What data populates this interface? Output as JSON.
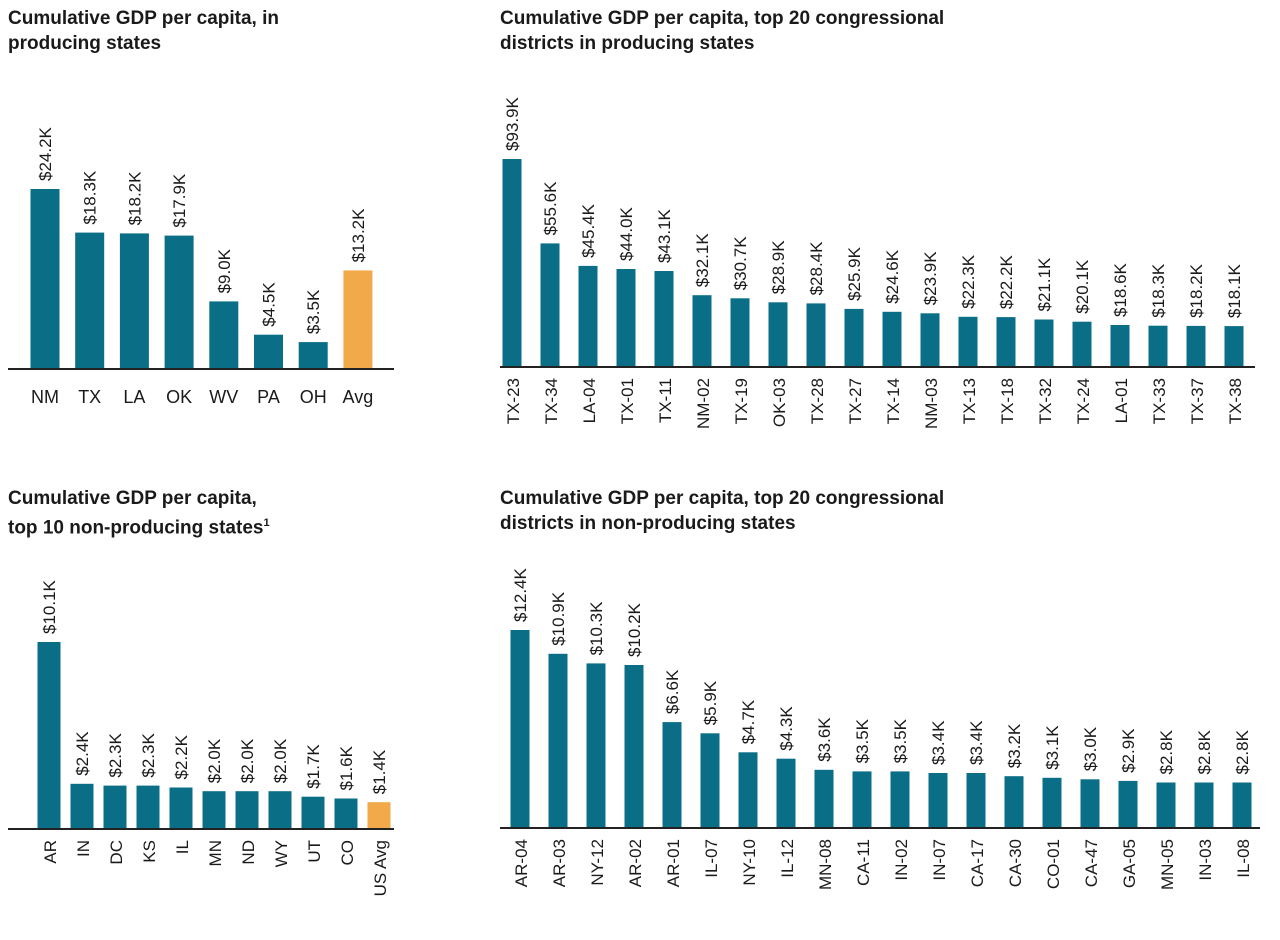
{
  "colors": {
    "bar": "#0a6e87",
    "highlight": "#f2a94a",
    "axis": "#222222",
    "text": "#1a1a1a"
  },
  "chart_data": [
    {
      "type": "bar",
      "title": [
        "Cumulative GDP per capita, in",
        "producing states"
      ],
      "footnote_mark": "",
      "categories": [
        "NM",
        "TX",
        "LA",
        "OK",
        "WV",
        "PA",
        "OH",
        "Avg"
      ],
      "values": [
        24.2,
        18.3,
        18.2,
        17.9,
        9.0,
        4.5,
        3.5,
        13.2
      ],
      "labels": [
        "$24.2K",
        "$18.3K",
        "$18.2K",
        "$17.9K",
        "$9.0K",
        "$4.5K",
        "$3.5K",
        "$13.2K"
      ],
      "highlight_index": 7,
      "unit": "thousand USD",
      "ylim": [
        0,
        24.2
      ],
      "grid": false,
      "rotated_category_labels": false
    },
    {
      "type": "bar",
      "title": [
        "Cumulative GDP per capita, top 20 congressional",
        "districts in producing states"
      ],
      "footnote_mark": "",
      "categories": [
        "TX-23",
        "TX-34",
        "LA-04",
        "TX-01",
        "TX-11",
        "NM-02",
        "TX-19",
        "OK-03",
        "TX-28",
        "TX-27",
        "TX-14",
        "NM-03",
        "TX-13",
        "TX-18",
        "TX-32",
        "TX-24",
        "LA-01",
        "TX-33",
        "TX-37",
        "TX-38"
      ],
      "values": [
        93.9,
        55.6,
        45.4,
        44.0,
        43.1,
        32.1,
        30.7,
        28.9,
        28.4,
        25.9,
        24.6,
        23.9,
        22.3,
        22.2,
        21.1,
        20.1,
        18.6,
        18.3,
        18.2,
        18.1
      ],
      "labels": [
        "$93.9K",
        "$55.6K",
        "$45.4K",
        "$44.0K",
        "$43.1K",
        "$32.1K",
        "$30.7K",
        "$28.9K",
        "$28.4K",
        "$25.9K",
        "$24.6K",
        "$23.9K",
        "$22.3K",
        "$22.2K",
        "$21.1K",
        "$20.1K",
        "$18.6K",
        "$18.3K",
        "$18.2K",
        "$18.1K"
      ],
      "highlight_index": -1,
      "unit": "thousand USD",
      "ylim": [
        0,
        93.9
      ],
      "grid": false,
      "rotated_category_labels": true
    },
    {
      "type": "bar",
      "title": [
        "Cumulative GDP per capita,",
        "top 10 non-producing states"
      ],
      "footnote_mark": "1",
      "categories": [
        "AR",
        "IN",
        "DC",
        "KS",
        "IL",
        "MN",
        "ND",
        "WY",
        "UT",
        "CO",
        "US Avg"
      ],
      "values": [
        10.1,
        2.4,
        2.3,
        2.3,
        2.2,
        2.0,
        2.0,
        2.0,
        1.7,
        1.6,
        1.4
      ],
      "labels": [
        "$10.1K",
        "$2.4K",
        "$2.3K",
        "$2.3K",
        "$2.2K",
        "$2.0K",
        "$2.0K",
        "$2.0K",
        "$1.7K",
        "$1.6K",
        "$1.4K"
      ],
      "highlight_index": 10,
      "unit": "thousand USD",
      "ylim": [
        0,
        10.1
      ],
      "grid": false,
      "rotated_category_labels": true
    },
    {
      "type": "bar",
      "title": [
        "Cumulative GDP per capita, top 20 congressional",
        "districts in non-producing states"
      ],
      "footnote_mark": "",
      "categories": [
        "AR-04",
        "AR-03",
        "NY-12",
        "AR-02",
        "AR-01",
        "IL-07",
        "NY-10",
        "IL-12",
        "MN-08",
        "CA-11",
        "IN-02",
        "IN-07",
        "CA-17",
        "CA-30",
        "CO-01",
        "CA-47",
        "GA-05",
        "MN-05",
        "IN-03",
        "IL-08"
      ],
      "values": [
        12.4,
        10.9,
        10.3,
        10.2,
        6.6,
        5.9,
        4.7,
        4.3,
        3.6,
        3.5,
        3.5,
        3.4,
        3.4,
        3.2,
        3.1,
        3.0,
        2.9,
        2.8,
        2.8,
        2.8
      ],
      "labels": [
        "$12.4K",
        "$10.9K",
        "$10.3K",
        "$10.2K",
        "$6.6K",
        "$5.9K",
        "$4.7K",
        "$4.3K",
        "$3.6K",
        "$3.5K",
        "$3.5K",
        "$3.4K",
        "$3.4K",
        "$3.2K",
        "$3.1K",
        "$3.0K",
        "$2.9K",
        "$2.8K",
        "$2.8K",
        "$2.8K"
      ],
      "highlight_index": -1,
      "unit": "thousand USD",
      "ylim": [
        0,
        12.4
      ],
      "grid": false,
      "rotated_category_labels": true
    }
  ]
}
